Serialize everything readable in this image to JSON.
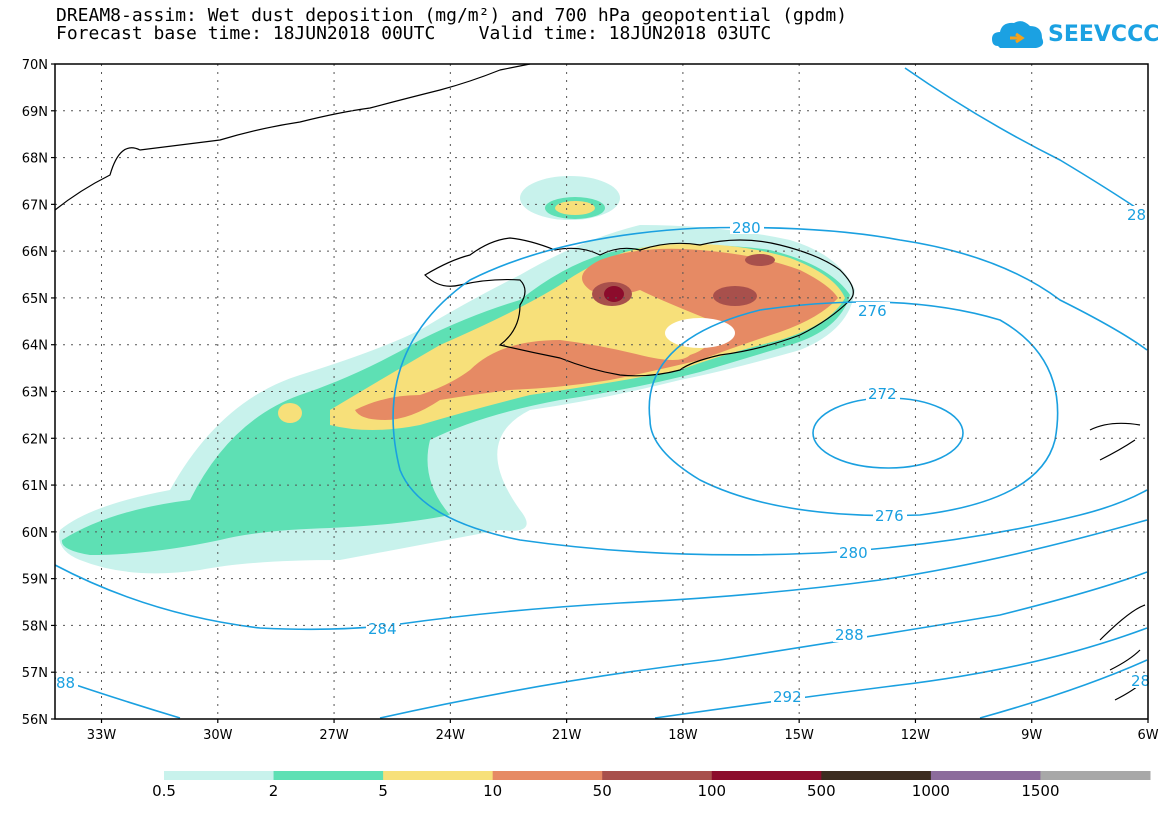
{
  "title": {
    "line1": "DREAM8-assim: Wet dust deposition (mg/m²) and 700 hPa geopotential (gpdm)",
    "line2": "Forecast base time: 18JUN2018 00UTC    Valid time: 18JUN2018 03UTC"
  },
  "logo": {
    "text": "SEEVCCC",
    "icon": "cloud-icon",
    "color": "#1ba1e2"
  },
  "axes": {
    "lat_labels": [
      "70N",
      "69N",
      "68N",
      "67N",
      "66N",
      "65N",
      "64N",
      "63N",
      "62N",
      "61N",
      "60N",
      "59N",
      "58N",
      "57N",
      "56N"
    ],
    "lon_labels": [
      "33W",
      "30W",
      "27W",
      "24W",
      "21W",
      "18W",
      "15W",
      "12W",
      "9W",
      "6W"
    ],
    "lat_range": [
      56,
      70
    ],
    "lon_range": [
      -34.2,
      -6
    ]
  },
  "contours": {
    "color": "#1aa0e0",
    "labels": [
      "280",
      "276",
      "272",
      "276",
      "280",
      "284",
      "288",
      "292",
      "28",
      "88",
      "28"
    ]
  },
  "colorbar": {
    "colors": [
      "#c8f2ec",
      "#5ee0b4",
      "#f7e07a",
      "#e68a64",
      "#a8504c",
      "#8c0c2c",
      "#3c2c20",
      "#8c6c9c",
      "#a8a8a8"
    ],
    "labels": [
      "0.5",
      "2",
      "5",
      "10",
      "50",
      "100",
      "500",
      "1000",
      "1500"
    ]
  }
}
